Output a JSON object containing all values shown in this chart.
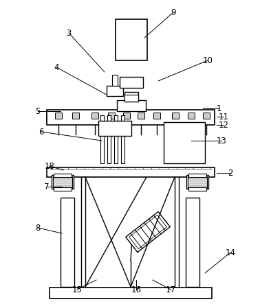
{
  "bg_color": "#ffffff",
  "line_color": "#000000",
  "gray_color": "#999999",
  "light_gray": "#cccccc",
  "label_data": [
    [
      "3",
      100,
      48,
      152,
      105
    ],
    [
      "4",
      82,
      98,
      155,
      138
    ],
    [
      "9",
      252,
      18,
      210,
      55
    ],
    [
      "10",
      302,
      88,
      230,
      118
    ],
    [
      "1",
      318,
      158,
      295,
      158
    ],
    [
      "11",
      325,
      170,
      315,
      170
    ],
    [
      "12",
      325,
      182,
      315,
      182
    ],
    [
      "5",
      55,
      162,
      88,
      162
    ],
    [
      "6",
      60,
      192,
      148,
      205
    ],
    [
      "13",
      322,
      205,
      278,
      205
    ],
    [
      "18",
      72,
      242,
      92,
      248
    ],
    [
      "2",
      335,
      252,
      315,
      252
    ],
    [
      "7",
      68,
      272,
      90,
      272
    ],
    [
      "8",
      55,
      332,
      90,
      340
    ],
    [
      "14",
      335,
      368,
      298,
      398
    ],
    [
      "15",
      112,
      422,
      140,
      408
    ],
    [
      "16",
      198,
      422,
      198,
      408
    ],
    [
      "17",
      248,
      422,
      222,
      408
    ]
  ]
}
